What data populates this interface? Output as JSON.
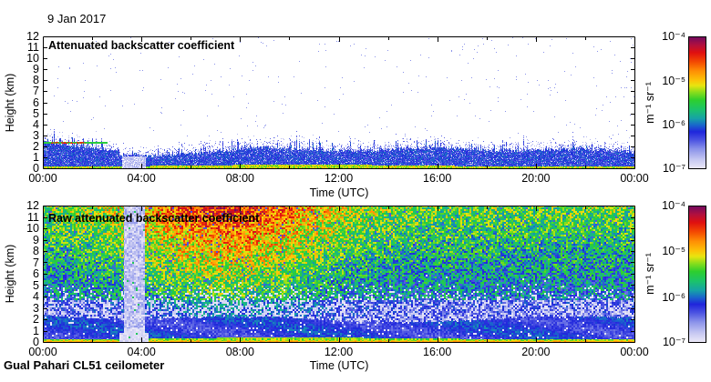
{
  "header": {
    "date": "9 Jan 2017"
  },
  "footer": {
    "label": "Gual Pahari CL51 ceilometer"
  },
  "colorbar": {
    "unit": "m⁻¹ sr⁻¹",
    "tick_labels": [
      "10⁻⁴",
      "10⁻⁵",
      "10⁻⁶",
      "10⁻⁷"
    ],
    "scale": "log",
    "min": 1e-07,
    "max": 0.0001,
    "stops": [
      [
        0.0,
        "#edeaf8"
      ],
      [
        0.07,
        "#c6c8f2"
      ],
      [
        0.15,
        "#8b93ea"
      ],
      [
        0.22,
        "#4a52e2"
      ],
      [
        0.28,
        "#2026dc"
      ],
      [
        0.33,
        "#1a66cc"
      ],
      [
        0.38,
        "#16a2a8"
      ],
      [
        0.45,
        "#1cc46a"
      ],
      [
        0.52,
        "#2ecf2e"
      ],
      [
        0.58,
        "#8ade1c"
      ],
      [
        0.63,
        "#e8e510"
      ],
      [
        0.67,
        "#fcc408"
      ],
      [
        0.74,
        "#ff9005"
      ],
      [
        0.81,
        "#f44a02"
      ],
      [
        0.88,
        "#e01010"
      ],
      [
        0.94,
        "#b01040"
      ],
      [
        1.0,
        "#700a60"
      ]
    ]
  },
  "chart_data": [
    {
      "type": "heatmap",
      "id": "attenuated",
      "title": "Attenuated backscatter coefficient",
      "xlabel": "Time (UTC)",
      "ylabel": "Height (km)",
      "x_ticks": [
        "00:00",
        "04:00",
        "08:00",
        "12:00",
        "16:00",
        "20:00",
        "00:00"
      ],
      "x_tick_hours": [
        0,
        4,
        8,
        12,
        16,
        20,
        24
      ],
      "x_minor_step_hours": 2,
      "x_range_hours": [
        0,
        24
      ],
      "y_ticks": [
        0,
        1,
        2,
        3,
        4,
        5,
        6,
        7,
        8,
        9,
        10,
        11,
        12
      ],
      "ylim": [
        0,
        12
      ],
      "value_range": [
        1e-07,
        0.0001
      ],
      "value_unit": "m⁻¹ sr⁻¹",
      "features": {
        "description": "Aerosol boundary layer of blue speckle up to ~1.5-2.5 km, green/yellow surface band ~0-0.3 km, pale fog/attenuation gap around 03:12-04:09, thin elevated layer near 2.35 km before 02:40 with red segments, white (no signal) above the layer.",
        "boundary_layer_start_km": 2.3,
        "boundary_layer_midday_km": 1.8,
        "surface_band_km": 0.3,
        "fog_hours": [
          3.2,
          4.15
        ],
        "elevated_layer": {
          "hours": [
            0,
            2.6
          ],
          "height_km": 2.35,
          "red_hours": [
            0.3,
            1.7
          ]
        }
      }
    },
    {
      "type": "heatmap",
      "id": "raw",
      "title": "Raw attenuated backscatter coefficient",
      "xlabel": "Time (UTC)",
      "ylabel": "Height (km)",
      "x_ticks": [
        "00:00",
        "04:00",
        "08:00",
        "12:00",
        "16:00",
        "20:00",
        "00:00"
      ],
      "x_tick_hours": [
        0,
        4,
        8,
        12,
        16,
        20,
        24
      ],
      "x_minor_step_hours": 2,
      "x_range_hours": [
        0,
        24
      ],
      "y_ticks": [
        0,
        1,
        2,
        3,
        4,
        5,
        6,
        7,
        8,
        9,
        10,
        11,
        12
      ],
      "ylim": [
        0,
        12
      ],
      "value_range": [
        1e-07,
        0.0001
      ],
      "value_unit": "m⁻¹ sr⁻¹",
      "features": {
        "description": "Noisy raw signal everywhere: green night-time noise, orange/red daytime solar background noise aloft (~03:00-13:00, strongest 05:00-10:00), solid blue signal band below ~2.2 km, white/lavender noise-floor speckle ~2.2-3.7 km, green surface band with yellow streaks, pale vertical attenuation stripe ~03:15-04:06.",
        "solar_noise_peak_hour": 7.5,
        "solar_noise_sigma_hours": 4.2,
        "signal_top_km": 2.1,
        "noise_floor_speckle_top_km": 3.7,
        "surface_band_km": 0.35,
        "fog_hours": [
          3.25,
          4.1
        ]
      }
    }
  ]
}
